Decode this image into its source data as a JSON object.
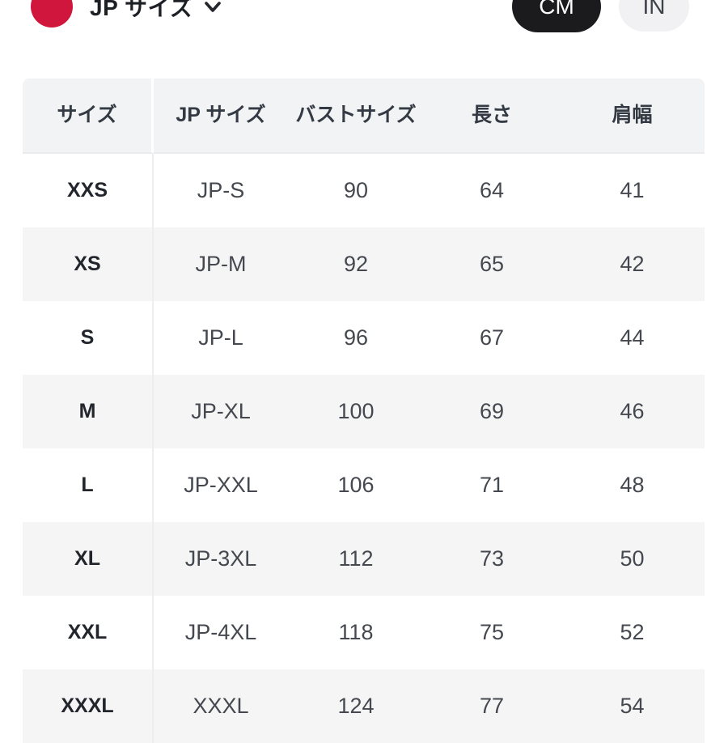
{
  "topbar": {
    "region_label": "JP サイズ",
    "flag_icon": "japan-flag-red-circle",
    "chevron_icon": "chevron-down",
    "unit_toggle": {
      "selected_unit": "CM",
      "options": [
        {
          "label": "CM",
          "selected": true
        },
        {
          "label": "IN",
          "selected": false
        }
      ]
    }
  },
  "table": {
    "headers": [
      "サイズ",
      "JP サイズ",
      "バストサイズ",
      "長さ",
      "肩幅"
    ],
    "rows": [
      [
        "XXS",
        "JP-S",
        "90",
        "64",
        "41"
      ],
      [
        "XS",
        "JP-M",
        "92",
        "65",
        "42"
      ],
      [
        "S",
        "JP-L",
        "96",
        "67",
        "44"
      ],
      [
        "M",
        "JP-XL",
        "100",
        "69",
        "46"
      ],
      [
        "L",
        "JP-XXL",
        "106",
        "71",
        "48"
      ],
      [
        "XL",
        "JP-3XL",
        "112",
        "73",
        "50"
      ],
      [
        "XXL",
        "JP-4XL",
        "118",
        "75",
        "52"
      ],
      [
        "XXXL",
        "XXXL",
        "124",
        "77",
        "54"
      ]
    ]
  },
  "colors": {
    "accent_red": "#d0163c",
    "pill_selected_bg": "#1b1b1e",
    "pill_unselected_bg": "#f1f1f3",
    "header_bg": "#f2f3f4",
    "row_alt_bg": "#f5f5f6",
    "text_dark": "#1c1f24"
  }
}
